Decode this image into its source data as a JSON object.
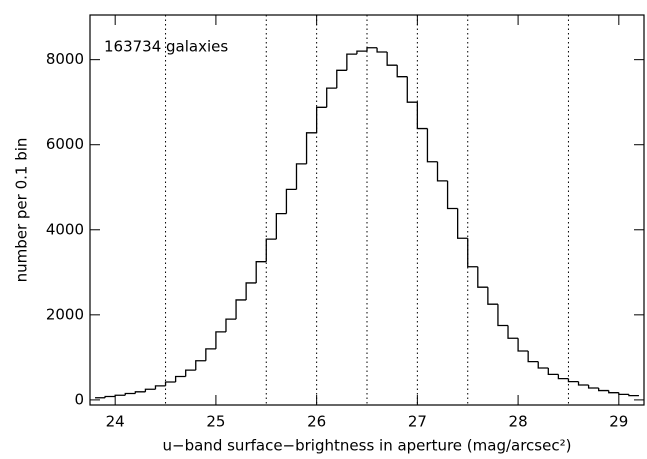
{
  "chart_data": {
    "type": "histogram",
    "xlabel": "u−band surface−brightness in aperture (mag/arcsec²)",
    "ylabel": "number per 0.1 bin",
    "annotation": "163734 galaxies",
    "bins": [
      23.8,
      23.9,
      24.0,
      24.1,
      24.2,
      24.3,
      24.4,
      24.5,
      24.6,
      24.7,
      24.8,
      24.9,
      25.0,
      25.1,
      25.2,
      25.3,
      25.4,
      25.5,
      25.6,
      25.7,
      25.8,
      25.9,
      26.0,
      26.1,
      26.2,
      26.3,
      26.4,
      26.5,
      26.6,
      26.7,
      26.8,
      26.9,
      27.0,
      27.1,
      27.2,
      27.3,
      27.4,
      27.5,
      27.6,
      27.7,
      27.8,
      27.9,
      28.0,
      28.1,
      28.2,
      28.3,
      28.4,
      28.5,
      28.6,
      28.7,
      28.8,
      28.9,
      29.0,
      29.1,
      29.2
    ],
    "values": [
      50,
      80,
      110,
      150,
      190,
      250,
      330,
      420,
      550,
      700,
      920,
      1200,
      1600,
      1900,
      2350,
      2750,
      3250,
      3780,
      4380,
      4950,
      5550,
      6280,
      6880,
      7330,
      7750,
      8130,
      8200,
      8280,
      8180,
      7870,
      7600,
      7000,
      6380,
      5600,
      5150,
      4500,
      3800,
      3130,
      2650,
      2250,
      1750,
      1450,
      1150,
      900,
      750,
      600,
      500,
      430,
      350,
      280,
      220,
      170,
      130,
      100
    ],
    "color": "#000000",
    "reference_lines": [
      24.5,
      25.5,
      26,
      26.5,
      27,
      27.5,
      28.5
    ],
    "xlim": [
      23.75,
      29.25
    ],
    "xticks": [
      24,
      25,
      26,
      27,
      28,
      29
    ],
    "ylim": [
      -120,
      9050
    ],
    "yticks": [
      0,
      2000,
      4000,
      6000,
      8000
    ]
  }
}
